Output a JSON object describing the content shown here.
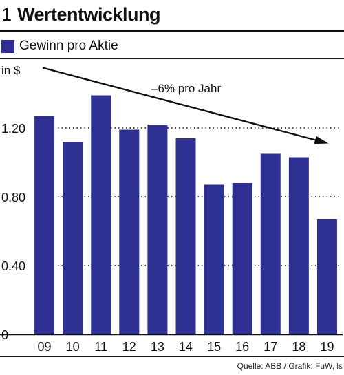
{
  "figure": {
    "number": "1",
    "title": "Wertentwicklung",
    "unit_label": "in $",
    "source": "Quelle: ABB / Grafik: FuW, ls"
  },
  "colors": {
    "bar": "#2e3192",
    "text": "#111111",
    "grid": "#111111"
  },
  "chart_data": {
    "type": "bar",
    "title": "Wertentwicklung",
    "categories": [
      "09",
      "10",
      "11",
      "12",
      "13",
      "14",
      "15",
      "16",
      "17",
      "18",
      "19"
    ],
    "series": [
      {
        "name": "Gewinn pro Aktie",
        "values": [
          1.27,
          1.12,
          1.39,
          1.19,
          1.22,
          1.14,
          0.87,
          0.88,
          1.05,
          1.03,
          0.67
        ]
      }
    ],
    "ylabel": "in $",
    "ylim": [
      0,
      1.6
    ],
    "yticks": [
      0,
      0.4,
      0.8,
      1.2
    ],
    "ytick_labels": [
      "0",
      "0.40",
      "0.80",
      "1.20"
    ],
    "grid": "dotted-horizontal",
    "legend": "top-left",
    "annotation": {
      "text": "–6% pro Jahr",
      "arrow_from": {
        "x": "09",
        "y": 1.55
      },
      "arrow_to": {
        "x": "19",
        "y": 1.11
      }
    }
  }
}
